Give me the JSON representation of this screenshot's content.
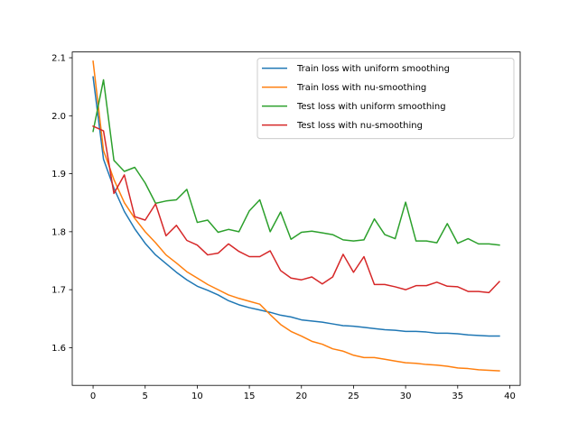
{
  "chart_data": {
    "type": "line",
    "title": "",
    "xlabel": "",
    "ylabel": "",
    "xlim": [
      -2,
      41
    ],
    "ylim": [
      1.535,
      2.11
    ],
    "x_ticks": [
      0,
      5,
      10,
      15,
      20,
      25,
      30,
      35,
      40
    ],
    "y_ticks": [
      1.6,
      1.7,
      1.8,
      1.9,
      2.0,
      2.1
    ],
    "x_tick_labels": [
      "0",
      "5",
      "10",
      "15",
      "20",
      "25",
      "30",
      "35",
      "40"
    ],
    "y_tick_labels": [
      "1.6",
      "1.7",
      "1.8",
      "1.9",
      "2.0",
      "2.1"
    ],
    "legend_position": "top-right",
    "grid": false,
    "x": [
      0,
      1,
      2,
      3,
      4,
      5,
      6,
      7,
      8,
      9,
      10,
      11,
      12,
      13,
      14,
      15,
      16,
      17,
      18,
      19,
      20,
      21,
      22,
      23,
      24,
      25,
      26,
      27,
      28,
      29,
      30,
      31,
      32,
      33,
      34,
      35,
      36,
      37,
      38,
      39
    ],
    "series": [
      {
        "name": "Train loss with uniform smoothing",
        "color": "#1f77b4",
        "values": [
          2.067,
          1.925,
          1.875,
          1.835,
          1.805,
          1.78,
          1.76,
          1.745,
          1.73,
          1.717,
          1.706,
          1.699,
          1.691,
          1.681,
          1.674,
          1.669,
          1.665,
          1.661,
          1.656,
          1.653,
          1.648,
          1.646,
          1.644,
          1.641,
          1.638,
          1.637,
          1.635,
          1.633,
          1.631,
          1.63,
          1.628,
          1.628,
          1.627,
          1.625,
          1.625,
          1.624,
          1.622,
          1.621,
          1.62,
          1.62
        ]
      },
      {
        "name": "Train loss with nu-smoothing",
        "color": "#ff7f0e",
        "values": [
          2.094,
          1.94,
          1.89,
          1.85,
          1.823,
          1.8,
          1.781,
          1.76,
          1.746,
          1.731,
          1.72,
          1.709,
          1.7,
          1.691,
          1.685,
          1.68,
          1.675,
          1.657,
          1.64,
          1.628,
          1.62,
          1.611,
          1.606,
          1.598,
          1.594,
          1.587,
          1.583,
          1.583,
          1.58,
          1.577,
          1.574,
          1.573,
          1.571,
          1.57,
          1.568,
          1.565,
          1.564,
          1.562,
          1.561,
          1.56
        ]
      },
      {
        "name": "Test loss with uniform smoothing",
        "color": "#2ca02c",
        "values": [
          1.973,
          2.062,
          1.923,
          1.904,
          1.911,
          1.884,
          1.849,
          1.853,
          1.855,
          1.873,
          1.816,
          1.82,
          1.799,
          1.804,
          1.8,
          1.836,
          1.855,
          1.8,
          1.834,
          1.787,
          1.799,
          1.801,
          1.798,
          1.795,
          1.786,
          1.784,
          1.786,
          1.822,
          1.795,
          1.788,
          1.851,
          1.784,
          1.784,
          1.781,
          1.814,
          1.78,
          1.788,
          1.779,
          1.779,
          1.777
        ]
      },
      {
        "name": "Test loss with nu-smoothing",
        "color": "#d62728",
        "values": [
          1.982,
          1.974,
          1.866,
          1.898,
          1.826,
          1.82,
          1.848,
          1.793,
          1.811,
          1.785,
          1.777,
          1.76,
          1.763,
          1.779,
          1.766,
          1.757,
          1.757,
          1.767,
          1.733,
          1.72,
          1.717,
          1.722,
          1.71,
          1.722,
          1.761,
          1.73,
          1.757,
          1.709,
          1.709,
          1.705,
          1.7,
          1.707,
          1.707,
          1.713,
          1.706,
          1.705,
          1.697,
          1.697,
          1.695,
          1.714
        ]
      }
    ]
  }
}
